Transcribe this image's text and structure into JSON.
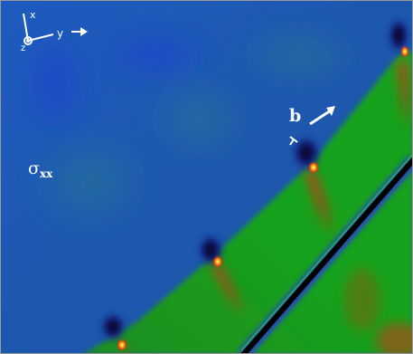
{
  "figure": {
    "stress_label": "σ",
    "stress_subscript": "xx",
    "burgers_label": "b",
    "axes": {
      "x": "x",
      "y": "y",
      "z": "z"
    },
    "colors": {
      "background_blue": "#1f4fb0",
      "green_region": "#1a9a1a",
      "core_red": "#d81f0c",
      "core_yellow": "#fff35a",
      "boundary_black": "#000000",
      "label_white": "#ffffff"
    }
  }
}
